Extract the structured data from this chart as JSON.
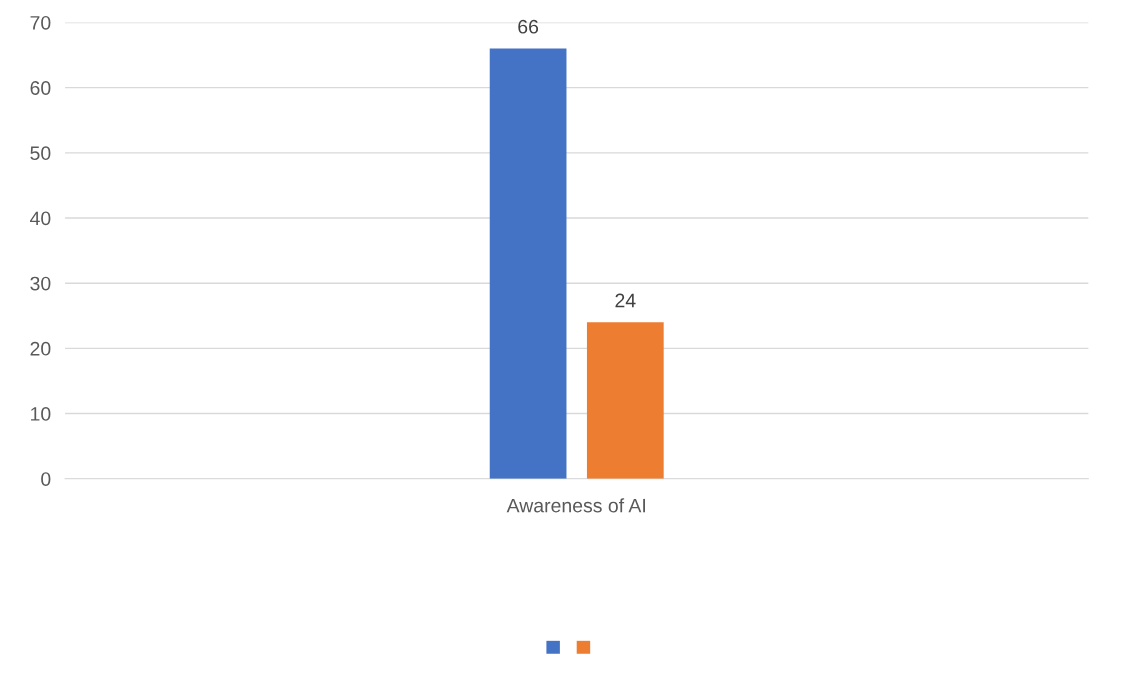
{
  "chart_data": {
    "type": "bar",
    "categories": [
      "Awareness of AI"
    ],
    "series": [
      {
        "color": "#4472c4",
        "values": [
          66
        ]
      },
      {
        "color": "#ed7d31",
        "values": [
          24
        ]
      }
    ],
    "ylim": [
      0,
      70
    ],
    "yticks": [
      0,
      10,
      20,
      30,
      40,
      50,
      60,
      70
    ],
    "grid": "y",
    "data_labels": true
  }
}
